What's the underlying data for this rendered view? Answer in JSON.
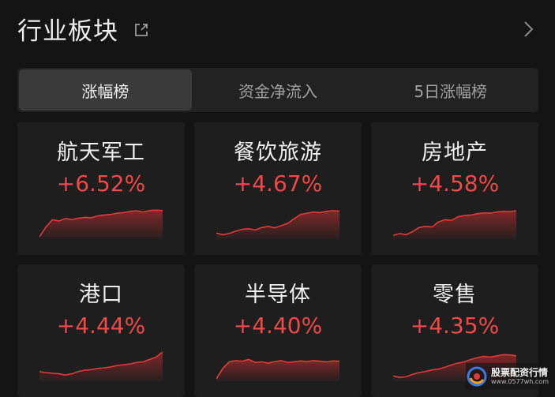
{
  "header": {
    "title": "行业板块"
  },
  "tabs": [
    {
      "label": "涨幅榜",
      "active": true
    },
    {
      "label": "资金净流入",
      "active": false
    },
    {
      "label": "5日涨幅榜",
      "active": false
    }
  ],
  "sectors": [
    {
      "name": "航天军工",
      "change": "+6.52%",
      "trend": [
        0.05,
        0.38,
        0.62,
        0.58,
        0.66,
        0.63,
        0.67,
        0.7,
        0.69,
        0.75,
        0.78,
        0.8,
        0.84,
        0.86,
        0.9,
        0.92,
        0.88,
        0.93,
        0.94,
        0.93
      ]
    },
    {
      "name": "餐饮旅游",
      "change": "+4.67%",
      "trend": [
        0.18,
        0.12,
        0.16,
        0.24,
        0.3,
        0.32,
        0.28,
        0.36,
        0.4,
        0.35,
        0.42,
        0.5,
        0.65,
        0.8,
        0.84,
        0.88,
        0.86,
        0.9,
        0.92,
        0.91
      ]
    },
    {
      "name": "房地产",
      "change": "+4.58%",
      "trend": [
        0.1,
        0.16,
        0.12,
        0.22,
        0.36,
        0.4,
        0.38,
        0.55,
        0.62,
        0.6,
        0.72,
        0.76,
        0.78,
        0.82,
        0.85,
        0.84,
        0.88,
        0.9,
        0.89,
        0.92
      ]
    },
    {
      "name": "港口",
      "change": "+4.44%",
      "trend": [
        0.3,
        0.26,
        0.24,
        0.22,
        0.18,
        0.22,
        0.3,
        0.34,
        0.36,
        0.4,
        0.42,
        0.45,
        0.5,
        0.52,
        0.55,
        0.6,
        0.62,
        0.7,
        0.78,
        0.95
      ]
    },
    {
      "name": "半导体",
      "change": "+4.40%",
      "trend": [
        0.05,
        0.4,
        0.62,
        0.66,
        0.64,
        0.7,
        0.6,
        0.62,
        0.58,
        0.63,
        0.66,
        0.6,
        0.62,
        0.65,
        0.63,
        0.66,
        0.64,
        0.62,
        0.65,
        0.64
      ]
    },
    {
      "name": "零售",
      "change": "+4.35%",
      "trend": [
        0.15,
        0.1,
        0.12,
        0.2,
        0.26,
        0.3,
        0.35,
        0.38,
        0.44,
        0.52,
        0.58,
        0.62,
        0.7,
        0.76,
        0.8,
        0.78,
        0.82,
        0.86,
        0.85,
        0.82
      ]
    }
  ],
  "colors": {
    "up": "#f04848",
    "up_line": "#e03a3a"
  },
  "watermark": {
    "main": "股票配资行情",
    "sub": "www.0577wh.com"
  }
}
